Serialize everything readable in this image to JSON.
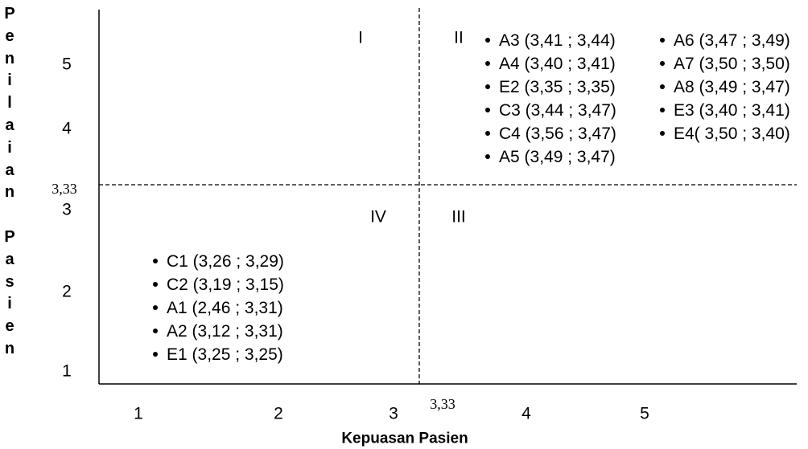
{
  "chart_data": {
    "type": "scatter",
    "xlabel": "Kepuasan Pasien",
    "ylabel": "Penilaian Pasien",
    "x_ticks": [
      "1",
      "2",
      "3",
      "4",
      "5"
    ],
    "y_ticks": [
      "1",
      "2",
      "3",
      "4",
      "5"
    ],
    "xlim": [
      1,
      5
    ],
    "ylim": [
      1,
      5
    ],
    "x_cut": 3.33,
    "y_cut": 3.33,
    "x_cut_label": "3,33",
    "y_cut_label": "3,33",
    "grid": false,
    "quadrants": [
      {
        "label": "I",
        "columns": []
      },
      {
        "label": "II",
        "columns": [
          [
            "A3 (3,41 ; 3,44)",
            "A4 (3,40 ; 3,41)",
            "E2 (3,35 ; 3,35)",
            "C3 (3,44 ; 3,47)",
            "C4 (3,56 ; 3,47)",
            "A5 (3,49 ; 3,47)"
          ],
          [
            "A6 (3,47 ; 3,49)",
            "A7 (3,50 ; 3,50)",
            "A8 (3,49 ; 3,47)",
            "E3 (3,40 ; 3,41)",
            "E4( 3,50 ; 3,40)"
          ]
        ]
      },
      {
        "label": "III",
        "columns": []
      },
      {
        "label": "IV",
        "columns": [
          [
            "C1 (3,26 ; 3,29)",
            "C2 (3,19 ; 3,15)",
            "A1 (2,46 ; 3,31)",
            "A2 (3,12 ; 3,31)",
            "E1 (3,25 ; 3,25)"
          ]
        ]
      }
    ]
  }
}
